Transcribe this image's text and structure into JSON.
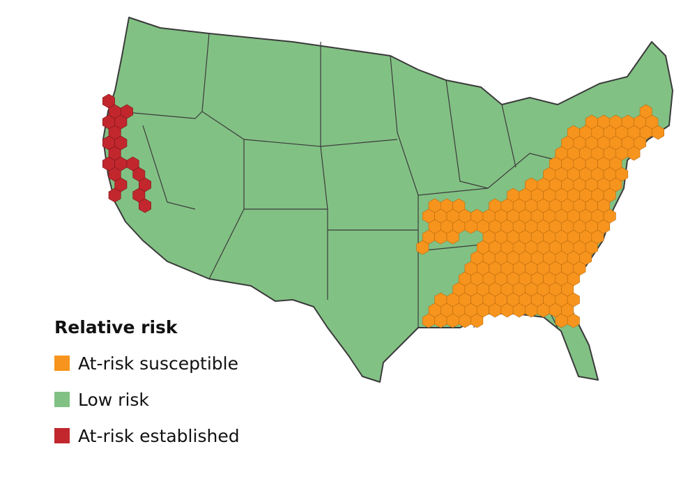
{
  "legend": {
    "title": "Relative risk",
    "items": [
      {
        "label": "At-risk susceptible",
        "color": "#f7941d"
      },
      {
        "label": "Low risk",
        "color": "#82c184"
      },
      {
        "label": "At-risk established",
        "color": "#c1272d"
      }
    ]
  }
}
